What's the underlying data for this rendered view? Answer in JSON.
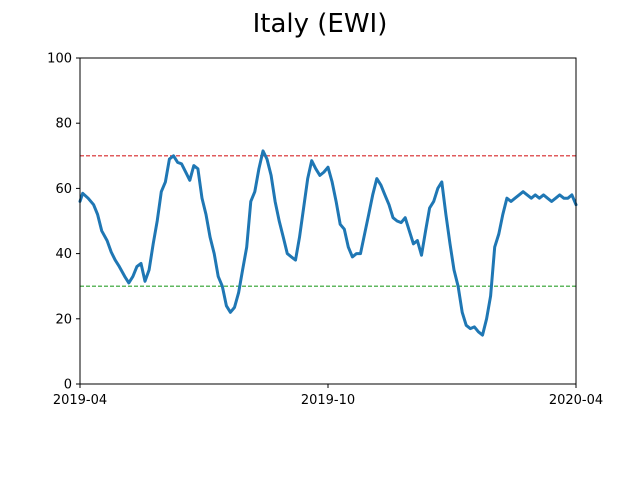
{
  "chart_data": {
    "type": "line",
    "title": "Italy (EWI)",
    "xlabel": "",
    "ylabel": "",
    "xlim": [
      "2019-04-01",
      "2020-04-01"
    ],
    "ylim": [
      0,
      100
    ],
    "x_ticks": [
      "2019-04",
      "2019-10",
      "2020-04"
    ],
    "y_ticks": [
      0,
      20,
      40,
      60,
      80,
      100
    ],
    "grid": false,
    "legend": "none",
    "reference_lines": [
      {
        "y": 70,
        "color": "#d62728",
        "style": "dashed"
      },
      {
        "y": 30,
        "color": "#2ca02c",
        "style": "dashed"
      }
    ],
    "series": [
      {
        "color": "#1f77b4",
        "points": [
          [
            "2019-04-01",
            56
          ],
          [
            "2019-04-03",
            58.5
          ],
          [
            "2019-04-07",
            57
          ],
          [
            "2019-04-11",
            55
          ],
          [
            "2019-04-14",
            52
          ],
          [
            "2019-04-17",
            47
          ],
          [
            "2019-04-21",
            44
          ],
          [
            "2019-04-24",
            40.5
          ],
          [
            "2019-04-27",
            38
          ],
          [
            "2019-04-30",
            36
          ],
          [
            "2019-05-04",
            33
          ],
          [
            "2019-05-07",
            31
          ],
          [
            "2019-05-10",
            33
          ],
          [
            "2019-05-13",
            36
          ],
          [
            "2019-05-16",
            37
          ],
          [
            "2019-05-19",
            31.5
          ],
          [
            "2019-05-22",
            35
          ],
          [
            "2019-05-25",
            43
          ],
          [
            "2019-05-28",
            50
          ],
          [
            "2019-05-31",
            59
          ],
          [
            "2019-06-03",
            62
          ],
          [
            "2019-06-06",
            69
          ],
          [
            "2019-06-09",
            70
          ],
          [
            "2019-06-12",
            68
          ],
          [
            "2019-06-15",
            67.5
          ],
          [
            "2019-06-18",
            65
          ],
          [
            "2019-06-21",
            62.5
          ],
          [
            "2019-06-24",
            67
          ],
          [
            "2019-06-27",
            66
          ],
          [
            "2019-06-30",
            57
          ],
          [
            "2019-07-03",
            52
          ],
          [
            "2019-07-06",
            45
          ],
          [
            "2019-07-09",
            40
          ],
          [
            "2019-07-12",
            33
          ],
          [
            "2019-07-15",
            30
          ],
          [
            "2019-07-18",
            24
          ],
          [
            "2019-07-21",
            22
          ],
          [
            "2019-07-24",
            23.5
          ],
          [
            "2019-07-27",
            28
          ],
          [
            "2019-07-30",
            35
          ],
          [
            "2019-08-02",
            42
          ],
          [
            "2019-08-05",
            56
          ],
          [
            "2019-08-08",
            59
          ],
          [
            "2019-08-11",
            66
          ],
          [
            "2019-08-14",
            71.5
          ],
          [
            "2019-08-17",
            69
          ],
          [
            "2019-08-20",
            64
          ],
          [
            "2019-08-23",
            56
          ],
          [
            "2019-08-26",
            50
          ],
          [
            "2019-08-29",
            45
          ],
          [
            "2019-09-01",
            40
          ],
          [
            "2019-09-04",
            39
          ],
          [
            "2019-09-07",
            38
          ],
          [
            "2019-09-10",
            45
          ],
          [
            "2019-09-13",
            54
          ],
          [
            "2019-09-16",
            63
          ],
          [
            "2019-09-19",
            68.5
          ],
          [
            "2019-09-22",
            66
          ],
          [
            "2019-09-25",
            64
          ],
          [
            "2019-09-28",
            65
          ],
          [
            "2019-10-01",
            66.5
          ],
          [
            "2019-10-04",
            62
          ],
          [
            "2019-10-07",
            56
          ],
          [
            "2019-10-10",
            49
          ],
          [
            "2019-10-13",
            47.5
          ],
          [
            "2019-10-16",
            42
          ],
          [
            "2019-10-19",
            39
          ],
          [
            "2019-10-22",
            40
          ],
          [
            "2019-10-25",
            40
          ],
          [
            "2019-10-28",
            46
          ],
          [
            "2019-10-31",
            52
          ],
          [
            "2019-11-03",
            58
          ],
          [
            "2019-11-06",
            63
          ],
          [
            "2019-11-09",
            61
          ],
          [
            "2019-11-12",
            58
          ],
          [
            "2019-11-15",
            55
          ],
          [
            "2019-11-18",
            51
          ],
          [
            "2019-11-21",
            50
          ],
          [
            "2019-11-24",
            49.5
          ],
          [
            "2019-11-27",
            51
          ],
          [
            "2019-11-30",
            47
          ],
          [
            "2019-12-03",
            43
          ],
          [
            "2019-12-06",
            44
          ],
          [
            "2019-12-09",
            39.5
          ],
          [
            "2019-12-12",
            47
          ],
          [
            "2019-12-15",
            54
          ],
          [
            "2019-12-18",
            56
          ],
          [
            "2019-12-21",
            60
          ],
          [
            "2019-12-24",
            62
          ],
          [
            "2019-12-27",
            52
          ],
          [
            "2019-12-30",
            43
          ],
          [
            "2020-01-02",
            35
          ],
          [
            "2020-01-05",
            30
          ],
          [
            "2020-01-08",
            22
          ],
          [
            "2020-01-11",
            18
          ],
          [
            "2020-01-14",
            17
          ],
          [
            "2020-01-17",
            17.5
          ],
          [
            "2020-01-20",
            16
          ],
          [
            "2020-01-23",
            15
          ],
          [
            "2020-01-26",
            20
          ],
          [
            "2020-01-29",
            27
          ],
          [
            "2020-02-01",
            42
          ],
          [
            "2020-02-04",
            46
          ],
          [
            "2020-02-07",
            52
          ],
          [
            "2020-02-10",
            57
          ],
          [
            "2020-02-13",
            56
          ],
          [
            "2020-02-16",
            57
          ],
          [
            "2020-02-19",
            58
          ],
          [
            "2020-02-22",
            59
          ],
          [
            "2020-02-25",
            58
          ],
          [
            "2020-02-28",
            57
          ],
          [
            "2020-03-02",
            58
          ],
          [
            "2020-03-05",
            57
          ],
          [
            "2020-03-08",
            58
          ],
          [
            "2020-03-11",
            57
          ],
          [
            "2020-03-14",
            56
          ],
          [
            "2020-03-17",
            57
          ],
          [
            "2020-03-20",
            58
          ],
          [
            "2020-03-23",
            57
          ],
          [
            "2020-03-26",
            57
          ],
          [
            "2020-03-29",
            58
          ],
          [
            "2020-04-01",
            55
          ]
        ]
      }
    ]
  }
}
